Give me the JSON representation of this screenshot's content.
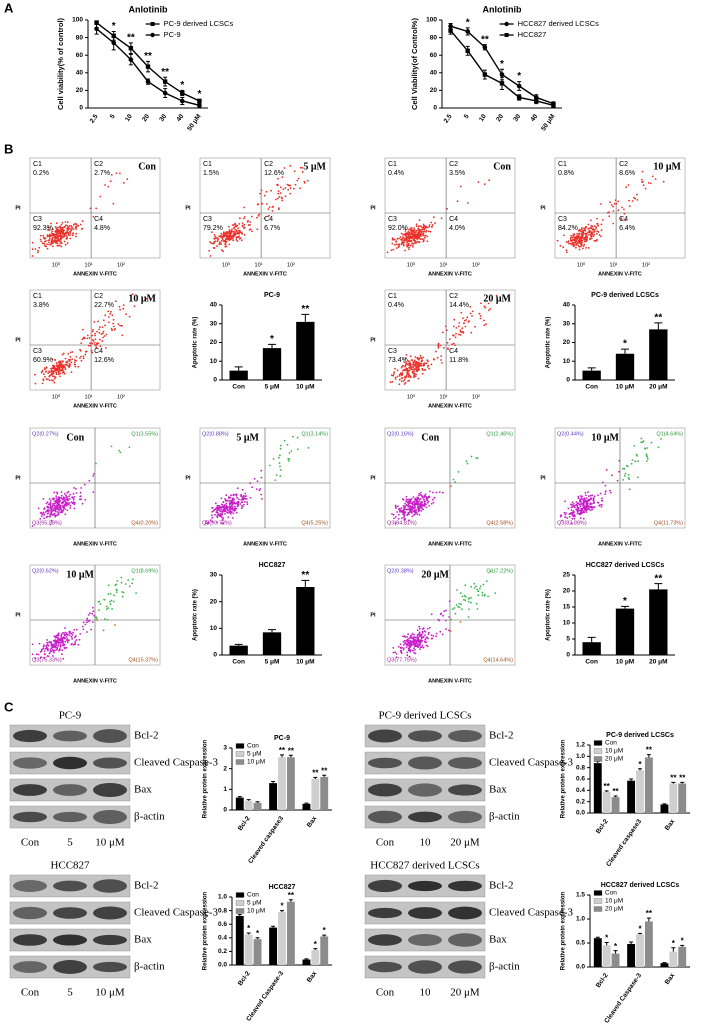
{
  "panel_labels": [
    "A",
    "B",
    "C"
  ],
  "chart_data": [
    {
      "type": "line",
      "title": "Anlotinib",
      "y_label": "Cell viability(% of control)",
      "categories": [
        "2.5",
        "5",
        "10",
        "20",
        "30",
        "40",
        "50 μM"
      ],
      "ylim": [
        0,
        100
      ],
      "yticks": [
        0,
        20,
        40,
        60,
        80,
        100
      ],
      "series": [
        {
          "name": "PC-9 derived LCSCs",
          "color": "#000000",
          "marker": "square",
          "values": [
            97,
            82,
            68,
            47,
            30,
            17,
            8
          ],
          "errors": [
            2,
            5,
            6,
            6,
            5,
            3,
            2
          ]
        },
        {
          "name": "PC-9",
          "color": "#000000",
          "marker": "circle",
          "values": [
            90,
            74,
            55,
            30,
            17,
            8,
            3
          ],
          "errors": [
            6,
            8,
            6,
            3,
            5,
            4,
            2
          ]
        }
      ],
      "annotations": [
        null,
        "*",
        "**",
        "**",
        "**",
        "*",
        "*"
      ]
    },
    {
      "type": "line",
      "title": "Anlotinib",
      "y_label": "Cell Viability(of Control%)",
      "categories": [
        "2.5",
        "5",
        "10",
        "20",
        "30",
        "40",
        "50 μM"
      ],
      "ylim": [
        0,
        100
      ],
      "yticks": [
        0,
        20,
        40,
        60,
        80,
        100
      ],
      "series": [
        {
          "name": "HCC827 derived LCSCs",
          "color": "#000000",
          "marker": "circle",
          "values": [
            93,
            87,
            69,
            38,
            25,
            12,
            5
          ],
          "errors": [
            3,
            4,
            3,
            6,
            5,
            3,
            2
          ]
        },
        {
          "name": "HCC827",
          "color": "#000000",
          "marker": "square",
          "values": [
            88,
            65,
            38,
            28,
            12,
            8,
            3
          ],
          "errors": [
            4,
            5,
            5,
            7,
            3,
            3,
            2
          ]
        }
      ],
      "annotations": [
        null,
        "*",
        "**",
        "*",
        "*",
        null,
        null
      ]
    },
    {
      "type": "bar",
      "title": "PC-9",
      "y_label": "Apoptotic rate (%)",
      "categories": [
        "Con",
        "5 μM",
        "10 μM"
      ],
      "values": [
        5,
        17,
        31
      ],
      "errors": [
        2,
        2,
        4
      ],
      "color": "#000000",
      "ylim": [
        0,
        40
      ],
      "yticks": [
        0,
        10,
        20,
        30,
        40
      ],
      "annotations": [
        null,
        "*",
        "**"
      ]
    },
    {
      "type": "bar",
      "title": "PC-9 derived LCSCs",
      "y_label": "Apoptotic rate (%)",
      "categories": [
        "Con",
        "10 μM",
        "20 μM"
      ],
      "values": [
        5,
        14,
        27
      ],
      "errors": [
        1.5,
        2.5,
        3.5
      ],
      "color": "#000000",
      "ylim": [
        0,
        40
      ],
      "yticks": [
        0,
        10,
        20,
        30,
        40
      ],
      "annotations": [
        null,
        "*",
        "**"
      ]
    },
    {
      "type": "bar",
      "title": "HCC827",
      "y_label": "Apoptotic rate (%)",
      "categories": [
        "Con",
        "5 μM",
        "10 μM"
      ],
      "values": [
        3.5,
        8.5,
        25.5
      ],
      "errors": [
        0.5,
        1,
        2.5
      ],
      "color": "#000000",
      "ylim": [
        0,
        30
      ],
      "yticks": [
        0,
        10,
        20,
        30
      ],
      "annotations": [
        null,
        null,
        "**"
      ]
    },
    {
      "type": "bar",
      "title": "HCC827 derived LCSCs",
      "y_label": "Apoptotic rate (%)",
      "categories": [
        "Con",
        "10 μM",
        "20 μM"
      ],
      "values": [
        4,
        14.5,
        20.5
      ],
      "errors": [
        1.5,
        0.7,
        1.8
      ],
      "color": "#000000",
      "ylim": [
        0,
        25
      ],
      "yticks": [
        0,
        5,
        10,
        15,
        20,
        25
      ],
      "annotations": [
        null,
        "*",
        "**"
      ]
    },
    {
      "type": "grouped_bar",
      "title": "PC-9",
      "y_label": "Relative protein expression",
      "categories": [
        "Bcl-2",
        "Cleaved caspase3",
        "Bax"
      ],
      "ylim": [
        0,
        3
      ],
      "yticks": [
        0,
        1,
        2,
        3
      ],
      "series": [
        {
          "name": "Con",
          "color": "#000000",
          "values": [
            0.6,
            1.3,
            0.3
          ],
          "errors": [
            0.05,
            0.08,
            0.03
          ],
          "significance": [
            null,
            null,
            null
          ]
        },
        {
          "name": "5 μM",
          "color": "#cfcfcf",
          "values": [
            0.45,
            2.55,
            1.5
          ],
          "errors": [
            0.05,
            0.12,
            0.08
          ],
          "significance": [
            null,
            "**",
            "**"
          ]
        },
        {
          "name": "10 μM",
          "color": "#8c8c8c",
          "values": [
            0.35,
            2.55,
            1.6
          ],
          "errors": [
            0.05,
            0.1,
            0.08
          ],
          "significance": [
            null,
            "**",
            "**"
          ]
        }
      ]
    },
    {
      "type": "grouped_bar",
      "title": "PC-9 derived LCSCs",
      "y_label": "Relative protein expression",
      "categories": [
        "Bcl-2",
        "Cleaved caspase3",
        "Bax"
      ],
      "ylim": [
        0,
        1.2
      ],
      "yticks": [
        {
          "value": 0,
          "label": "0.0"
        },
        0.2,
        0.4,
        0.6,
        0.8,
        {
          "value": 1,
          "label": "1.0"
        },
        1.2
      ],
      "series": [
        {
          "name": "Con",
          "color": "#000000",
          "values": [
            0.88,
            0.57,
            0.15
          ],
          "errors": [
            0.03,
            0.03,
            0.01
          ],
          "significance": [
            null,
            null,
            null
          ]
        },
        {
          "name": "10 μM",
          "color": "#cfcfcf",
          "values": [
            0.37,
            0.75,
            0.52
          ],
          "errors": [
            0.02,
            0.03,
            0.02
          ],
          "significance": [
            "**",
            "*",
            "**"
          ]
        },
        {
          "name": "20 μM",
          "color": "#8c8c8c",
          "values": [
            0.28,
            0.98,
            0.52
          ],
          "errors": [
            0.02,
            0.05,
            0.02
          ],
          "significance": [
            "**",
            "**",
            "**"
          ]
        }
      ]
    },
    {
      "type": "grouped_bar",
      "title": "HCC827",
      "y_label": "Relative protein expression",
      "categories": [
        "Bcl-2",
        "Cleaved Caspase-3",
        "Bax"
      ],
      "ylim": [
        0,
        1
      ],
      "yticks": [
        {
          "value": 0,
          "label": "0.0"
        },
        0.2,
        0.4,
        0.6,
        0.8,
        {
          "value": 1,
          "label": "1.0"
        }
      ],
      "series": [
        {
          "name": "Con",
          "color": "#000000",
          "values": [
            0.72,
            0.55,
            0.08
          ],
          "errors": [
            0.02,
            0.02,
            0.01
          ],
          "significance": [
            null,
            null,
            null
          ]
        },
        {
          "name": "5 μM",
          "color": "#cfcfcf",
          "values": [
            0.45,
            0.78,
            0.22
          ],
          "errors": [
            0.02,
            0.02,
            0.02
          ],
          "significance": [
            "*",
            "*",
            "*"
          ]
        },
        {
          "name": "10 μM",
          "color": "#8c8c8c",
          "values": [
            0.38,
            0.93,
            0.42
          ],
          "errors": [
            0.02,
            0.03,
            0.02
          ],
          "significance": [
            "*",
            "**",
            "*"
          ]
        }
      ]
    },
    {
      "type": "grouped_bar",
      "title": "HCC827 derived LCSCs",
      "y_label": "Relative protein expression",
      "categories": [
        "Bcl-2",
        "Cleaved Caspase-3",
        "Bax"
      ],
      "ylim": [
        0,
        1.5
      ],
      "yticks": [
        {
          "value": 0,
          "label": "0.0"
        },
        0.5,
        {
          "value": 1,
          "label": "1.0"
        },
        1.5
      ],
      "series": [
        {
          "name": "Con",
          "color": "#000000",
          "values": [
            0.6,
            0.48,
            0.08
          ],
          "errors": [
            0.02,
            0.04,
            0.01
          ],
          "significance": [
            null,
            null,
            null
          ]
        },
        {
          "name": "10 μM",
          "color": "#cfcfcf",
          "values": [
            0.45,
            0.68,
            0.32
          ],
          "errors": [
            0.06,
            0.02,
            0.08
          ],
          "significance": [
            "*",
            "*",
            "*"
          ]
        },
        {
          "name": "20 μM",
          "color": "#8c8c8c",
          "values": [
            0.28,
            0.95,
            0.42
          ],
          "errors": [
            0.06,
            0.07,
            0.03
          ],
          "significance": [
            "*",
            "**",
            "*"
          ]
        }
      ]
    }
  ],
  "flow_axes": {
    "x_label": "ANNEXIN V-FITC",
    "y_label": "PI",
    "ticks": [
      "10⁰",
      "10¹",
      "10²"
    ]
  },
  "flow_plots": [
    {
      "style": "annexin",
      "condition": "Con",
      "quadrants": [
        {
          "name": "C1",
          "value": "0.2%"
        },
        {
          "name": "C2",
          "value": "2.7%"
        },
        {
          "name": "C3",
          "value": "92.3%"
        },
        {
          "name": "C4",
          "value": "4.8%"
        }
      ]
    },
    {
      "style": "annexin",
      "condition": "5 μM",
      "quadrants": [
        {
          "name": "C1",
          "value": "1.5%"
        },
        {
          "name": "C2",
          "value": "12.6%"
        },
        {
          "name": "C3",
          "value": "79.2%"
        },
        {
          "name": "C4",
          "value": "6.7%"
        }
      ]
    },
    {
      "style": "annexin",
      "condition": "Con",
      "quadrants": [
        {
          "name": "C1",
          "value": "0.4%"
        },
        {
          "name": "C2",
          "value": "3.5%"
        },
        {
          "name": "C3",
          "value": "92.0%"
        },
        {
          "name": "C4",
          "value": "4.0%"
        }
      ]
    },
    {
      "style": "annexin",
      "condition": "10 μM",
      "quadrants": [
        {
          "name": "C1",
          "value": "0.8%"
        },
        {
          "name": "C2",
          "value": "8.6%"
        },
        {
          "name": "C3",
          "value": "84.2%"
        },
        {
          "name": "C4",
          "value": "6.4%"
        }
      ]
    },
    {
      "style": "annexin",
      "condition": "10 μM",
      "quadrants": [
        {
          "name": "C1",
          "value": "3.8%"
        },
        {
          "name": "C2",
          "value": "22.7%"
        },
        {
          "name": "C3",
          "value": "60.9%"
        },
        {
          "name": "C4",
          "value": "12.6%"
        }
      ]
    },
    {
      "style": "annexin",
      "condition": "20 μM",
      "quadrants": [
        {
          "name": "C1",
          "value": "0.4%"
        },
        {
          "name": "C2",
          "value": "14.4%"
        },
        {
          "name": "C3",
          "value": "73.4%"
        },
        {
          "name": "C4",
          "value": "11.8%"
        }
      ]
    },
    {
      "style": "quadrant",
      "condition": "Con",
      "quadrants": [
        "Q2(0.27%)",
        "Q1(3.55%)",
        "Q3(95.98%)",
        "Q4(0.20%)"
      ]
    },
    {
      "style": "quadrant",
      "condition": "5 μM",
      "quadrants": [
        "Q2(0.88%)",
        "Q1(3.14%)",
        "Q3(90.72%)",
        "Q4(5.25%)"
      ]
    },
    {
      "style": "quadrant",
      "condition": "Con",
      "quadrants": [
        "Q2(0.16%)",
        "Q1(2.46%)",
        "Q3(94.81%)",
        "Q4(2.58%)"
      ]
    },
    {
      "style": "quadrant",
      "condition": "10 μM",
      "quadrants": [
        "Q2(0.44%)",
        "Q1(4.64%)",
        "Q3(82.89%)",
        "Q4(11.73%)"
      ]
    },
    {
      "style": "quadrant",
      "condition": "10 μM",
      "quadrants": [
        "Q2(0.62%)",
        "Q1(8.69%)",
        "Q3(75.33%)",
        "Q4(15.37%)"
      ]
    },
    {
      "style": "quadrant",
      "condition": "20 μM",
      "quadrants": [
        "Q2(0.38%)",
        "Q1(7.22%)",
        "Q3(77.75%)",
        "Q4(14.64%)"
      ]
    }
  ],
  "blots": [
    {
      "title": "PC-9",
      "rows": [
        "Bcl-2",
        "Cleaved Caspase-3",
        "Bax",
        "β-actin"
      ],
      "lanes": [
        "Con",
        "5",
        "10 μM"
      ]
    },
    {
      "title": "PC-9 derived LCSCs",
      "rows": [
        "Bcl-2",
        "Cleaved Caspase-3",
        "Bax",
        "β-actin"
      ],
      "lanes": [
        "Con",
        "10",
        "20 μM"
      ]
    },
    {
      "title": "HCC827",
      "rows": [
        "Bcl-2",
        "Cleaved Caspase-3",
        "Bax",
        "β-actin"
      ],
      "lanes": [
        "Con",
        "5",
        "10 μM"
      ]
    },
    {
      "title": "HCC827 derived LCSCs",
      "rows": [
        "Bcl-2",
        "Cleaved Caspase-3",
        "Bax",
        "β-actin"
      ],
      "lanes": [
        "Con",
        "10",
        "20 μM"
      ]
    }
  ]
}
